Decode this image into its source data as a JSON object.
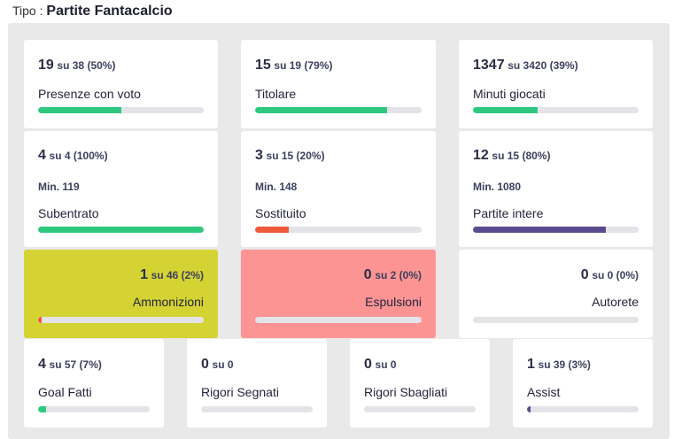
{
  "header": {
    "prefix": "Tipo :",
    "type": "Partite Fantacalcio"
  },
  "colors": {
    "green": "#2ec97e",
    "orange": "#f05a3c",
    "purple": "#5a4b8e",
    "yellow": "#d5d333",
    "pink": "#fc9494",
    "track": "#e4e4e8"
  },
  "cards": {
    "presenze": {
      "num": "19",
      "rest": "su 38 (50%)",
      "label": "Presenze con voto",
      "progress": 0.5
    },
    "titolare": {
      "num": "15",
      "rest": "su 19 (79%)",
      "label": "Titolare",
      "progress": 0.79
    },
    "minuti": {
      "num": "1347",
      "rest": "su 3420 (39%)",
      "label": "Minuti giocati",
      "progress": 0.39
    },
    "subentrato": {
      "num": "4",
      "rest": "su 4 (100%)",
      "min": "Min. 119",
      "label": "Subentrato",
      "progress": 1.0
    },
    "sostituito": {
      "num": "3",
      "rest": "su 15 (20%)",
      "min": "Min. 148",
      "label": "Sostituito",
      "progress": 0.2
    },
    "intere": {
      "num": "12",
      "rest": "su 15 (80%)",
      "min": "Min. 1080",
      "label": "Partite intere",
      "progress": 0.8
    },
    "ammonizioni": {
      "num": "1",
      "rest": "su 46 (2%)",
      "label": "Ammonizioni",
      "progress": 0.02
    },
    "espulsioni": {
      "num": "0",
      "rest": "su 2 (0%)",
      "label": "Espulsioni",
      "progress": 0
    },
    "autorete": {
      "num": "0",
      "rest": "su 0 (0%)",
      "label": "Autorete",
      "progress": 0
    },
    "goal": {
      "num": "4",
      "rest": "su 57 (7%)",
      "label": "Goal Fatti",
      "progress": 0.07
    },
    "rigori_segnati": {
      "num": "0",
      "rest": "su 0",
      "label": "Rigori Segnati",
      "progress": 0
    },
    "rigori_sbagliati": {
      "num": "0",
      "rest": "su 0",
      "label": "Rigori Sbagliati",
      "progress": 0
    },
    "assist": {
      "num": "1",
      "rest": "su 39 (3%)",
      "label": "Assist",
      "progress": 0.03
    }
  }
}
